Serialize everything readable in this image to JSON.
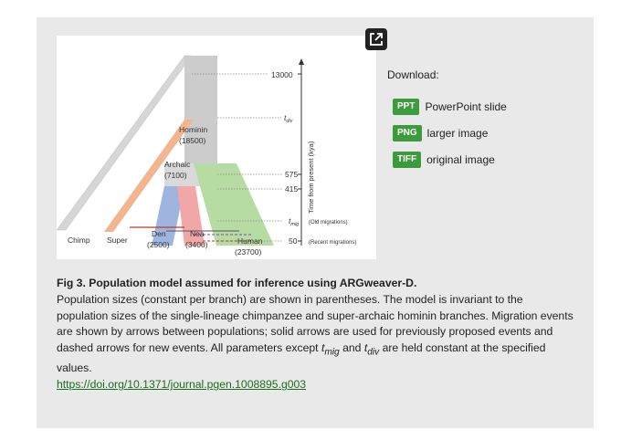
{
  "figure": {
    "time_labels": {
      "t13000": "13000",
      "tdiv": "t",
      "tdiv_sub": "div",
      "t575": "575",
      "t415": "415",
      "tmig": "t",
      "tmig_sub": "mig",
      "t50": "50"
    },
    "axis_label": "Time from present (kya)",
    "migration_notes": {
      "old": "(Old migrations)",
      "recent": "(Recent migrations)"
    },
    "hominin": {
      "name": "Hominin",
      "size": "(18500)"
    },
    "archaic": {
      "name": "Archaic",
      "size": "(7100)"
    },
    "leaves": {
      "chimp": "Chimp",
      "super": "Super",
      "den_name": "Den",
      "den_size": "(2500)",
      "nea_name": "Nea",
      "nea_size": "(3400)",
      "human_name": "Human",
      "human_size": "(23700)"
    },
    "colors": {
      "chimp": "#cfcfcf",
      "super": "#f2b58f",
      "den": "#9fb5e0",
      "nea": "#f1a7a7",
      "human": "#b7dca3",
      "hominin": "#cccccc"
    }
  },
  "expand_icon": "expand-icon",
  "download": {
    "label": "Download:",
    "items": [
      {
        "badge": "PPT",
        "text": "PowerPoint slide"
      },
      {
        "badge": "PNG",
        "text": "larger image"
      },
      {
        "badge": "TIFF",
        "text": "original image"
      }
    ]
  },
  "caption": {
    "title": "Fig 3. Population model assumed for inference using ARGweaver-D.",
    "body_1": "Population sizes (constant per branch) are shown in parentheses. The model is invariant to the population sizes of the single-lineage chimpanzee and super-archaic hominin branches. Migration events are shown by arrows between populations; solid arrows are used for previously proposed events and dashed arrows for new events. All parameters except ",
    "tmig_t": "t",
    "tmig_sub": "mig",
    "and": " and ",
    "tdiv_t": "t",
    "tdiv_sub": "div",
    "body_2": " are held constant at the specified values.",
    "doi": "https://doi.org/10.1371/journal.pgen.1008895.g003"
  }
}
